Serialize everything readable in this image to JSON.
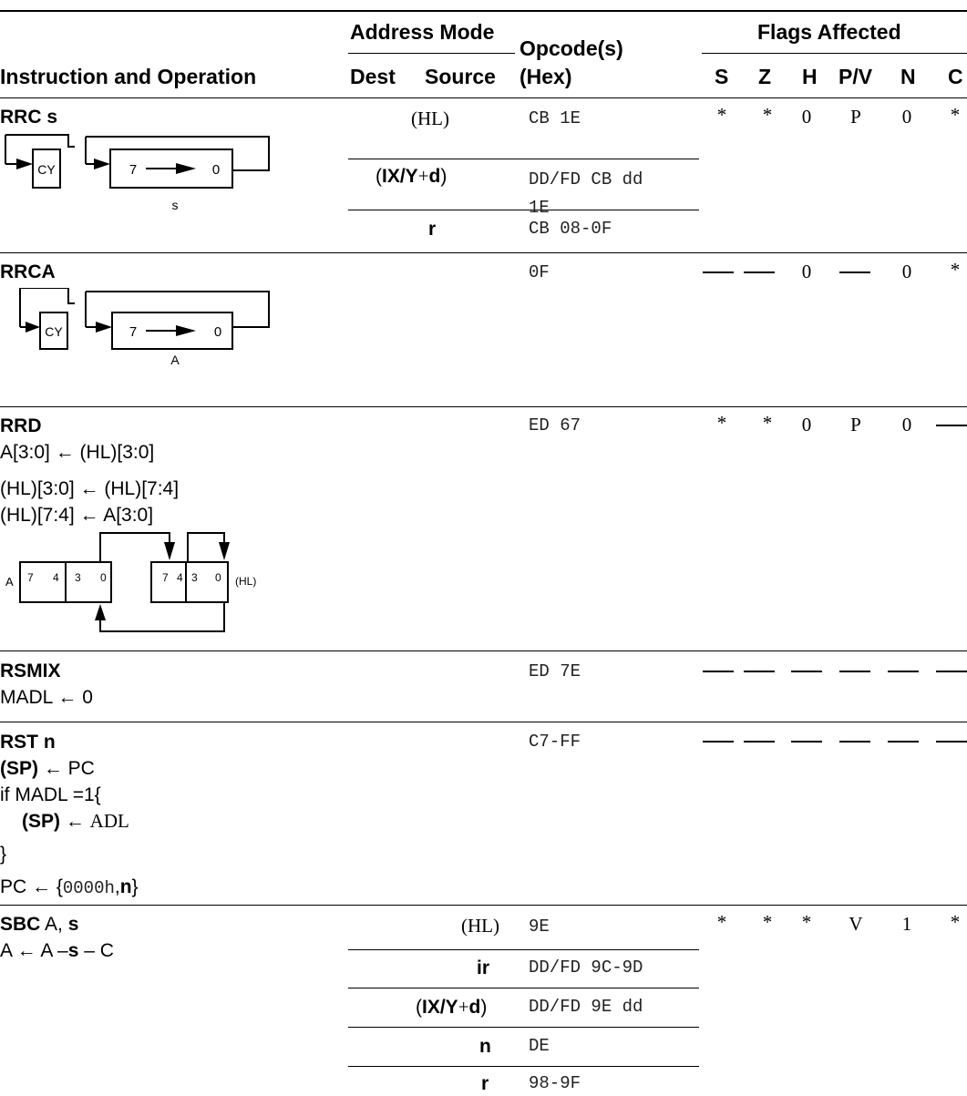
{
  "header": {
    "address_mode": "Address Mode",
    "opcodes": "Opcode(s)",
    "flags_affected": "Flags Affected",
    "instruction_and_operation": "Instruction and Operation",
    "dest": "Dest",
    "source": "Source",
    "hex": "(Hex)",
    "flag_names": [
      "S",
      "Z",
      "H",
      "P/V",
      "N",
      "C"
    ]
  },
  "rrc": {
    "mnemonic": "RRC",
    "operand": "s",
    "diagram": {
      "cy": "CY",
      "bit_hi": "7",
      "bit_lo": "0",
      "label": "s"
    },
    "modes": [
      {
        "source": "(HL)",
        "opcode": "CB 1E"
      },
      {
        "source_a": "IX/Y",
        "source_b": "+",
        "source_c": "d",
        "opcode_line1": "DD/FD CB dd",
        "opcode_line2": "1E"
      },
      {
        "source": "r",
        "opcode": "CB 08-0F"
      }
    ],
    "flags": [
      "*",
      "*",
      "0",
      "P",
      "0",
      "*"
    ]
  },
  "rrca": {
    "mnemonic": "RRCA",
    "diagram": {
      "cy": "CY",
      "bit_hi": "7",
      "bit_lo": "0",
      "label": "A"
    },
    "opcode": "0F",
    "flags": [
      "—",
      "—",
      "0",
      "—",
      "0",
      "*"
    ]
  },
  "rrd": {
    "mnemonic": "RRD",
    "ops": [
      "A[3:0] ← (HL)[3:0]",
      "(HL)[3:0] ← (HL)[7:4]",
      "(HL)[7:4] ← A[3:0]"
    ],
    "diagram": {
      "reg_a": "A",
      "reg_hl": "(HL)",
      "b7": "7",
      "b4": "4",
      "b3": "3",
      "b0": "0"
    },
    "opcode": "ED 67",
    "flags": [
      "*",
      "*",
      "0",
      "P",
      "0",
      "—"
    ]
  },
  "rsmix": {
    "mnemonic": "RSMIX",
    "op": "MADL ← 0",
    "opcode": "ED 7E",
    "flags": [
      "—",
      "—",
      "—",
      "—",
      "—",
      "—"
    ]
  },
  "rst": {
    "mnemonic": "RST n",
    "op1_a": "(SP)",
    "op1_b": " ← PC",
    "op2": "if MADL =1{",
    "op3_a": "(SP)",
    "op3_b": " ← ",
    "op3_c": "ADL",
    "op4": "}",
    "op5_a": "PC ← {",
    "op5_b": "0000h",
    "op5_c": ",",
    "op5_d": "n",
    "op5_e": "}",
    "opcode": "C7-FF",
    "flags": [
      "—",
      "—",
      "—",
      "—",
      "—",
      "—"
    ]
  },
  "sbc": {
    "mnemonic": "SBC",
    "operand_a": " A, ",
    "operand_b": "s",
    "op_a": "A ← A –",
    "op_b": "s",
    "op_c": " – C",
    "modes": [
      {
        "source": "(HL)",
        "opcode": "9E"
      },
      {
        "source": "ir",
        "opcode": "DD/FD 9C-9D"
      },
      {
        "source_a": "IX/Y",
        "source_b": "+",
        "source_c": "d",
        "opcode": "DD/FD 9E dd"
      },
      {
        "source": "n",
        "opcode": "DE"
      },
      {
        "source": "r",
        "opcode": "98-9F"
      }
    ],
    "flags": [
      "*",
      "*",
      "*",
      "V",
      "1",
      "*"
    ]
  }
}
